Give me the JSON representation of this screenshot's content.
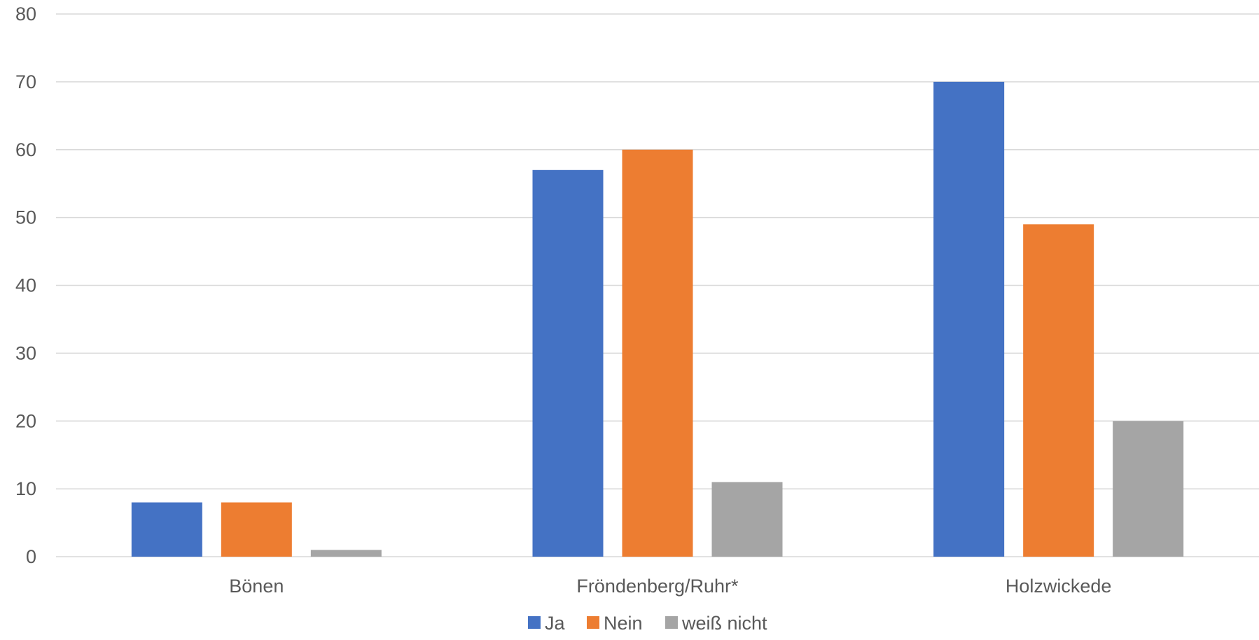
{
  "chart_data": {
    "type": "bar",
    "categories": [
      "Bönen",
      "Fröndenberg/Ruhr*",
      "Holzwickede"
    ],
    "series": [
      {
        "name": "Ja",
        "values": [
          8,
          57,
          70
        ],
        "color": "#4472C4"
      },
      {
        "name": "Nein",
        "values": [
          8,
          60,
          49
        ],
        "color": "#ED7D31"
      },
      {
        "name": "weiß nicht",
        "values": [
          1,
          11,
          20
        ],
        "color": "#A5A5A5"
      }
    ],
    "ylim": [
      0,
      80
    ],
    "yticks": [
      "0",
      "10",
      "20",
      "30",
      "40",
      "50",
      "60",
      "70",
      "80"
    ],
    "grid": true,
    "legend_position": "bottom",
    "colors": {
      "grid": "#D9D9D9",
      "text": "#595959"
    }
  }
}
